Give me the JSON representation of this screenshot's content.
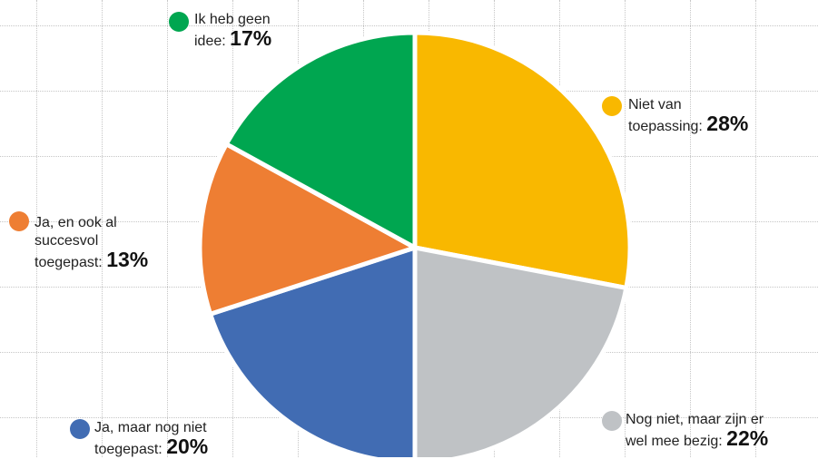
{
  "chart_data": {
    "type": "pie",
    "slices": [
      {
        "label_lines": [
          "Niet van",
          "toepassing:"
        ],
        "value": 28,
        "pct_label": "28%",
        "color": "#F9B800"
      },
      {
        "label_lines": [
          "Nog niet, maar zijn er",
          "wel mee bezig:"
        ],
        "value": 22,
        "pct_label": "22%",
        "color": "#BFC2C5"
      },
      {
        "label_lines": [
          "Ja, maar nog niet",
          "toegepast:"
        ],
        "value": 20,
        "pct_label": "20%",
        "color": "#416CB3"
      },
      {
        "label_lines": [
          "Ja, en ook al",
          "succesvol",
          "toegepast:"
        ],
        "value": 13,
        "pct_label": "13%",
        "color": "#EE7E33"
      },
      {
        "label_lines": [
          "Ik heb geen",
          "idee:"
        ],
        "value": 17,
        "pct_label": "17%",
        "color": "#00A650"
      }
    ],
    "start_angle_deg": 0,
    "direction": "clockwise",
    "slice_border_color": "#ffffff"
  }
}
